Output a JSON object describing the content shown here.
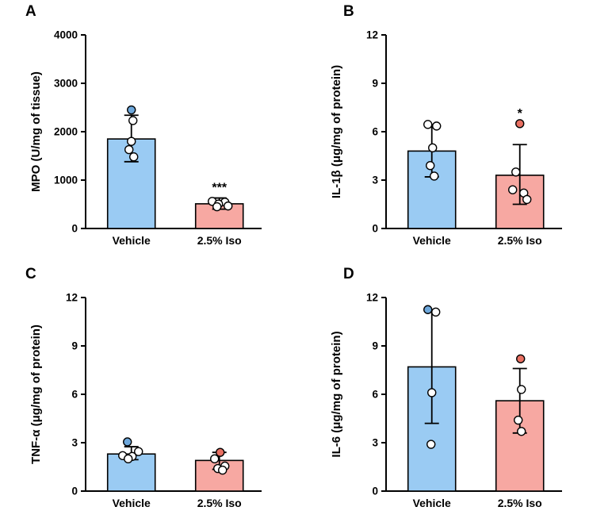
{
  "style": {
    "axis_color": "#000000",
    "bar_fill_vehicle": "#9ACBF3",
    "bar_fill_iso": "#F7A8A2",
    "point_open_fill": "#FFFFFF",
    "point_blue_fill": "#6EA8DC",
    "point_red_fill": "#E97062",
    "point_stroke": "#000000"
  },
  "chart_data": [
    {
      "panel": "A",
      "type": "bar",
      "ylabel": "MPO (U/mg of tissue)",
      "ylim": [
        0,
        4000
      ],
      "yticks": [
        0,
        1000,
        2000,
        3000,
        4000
      ],
      "categories": [
        "Vehicle",
        "2.5% Iso"
      ],
      "grid": false,
      "series": [
        {
          "name": "Vehicle",
          "bar_value": 1850,
          "error_low": 1380,
          "error_high": 2340,
          "color": "#9ACBF3",
          "significance": "",
          "points": [
            {
              "value": 2450,
              "style": "blue",
              "dx": 0
            },
            {
              "value": 2230,
              "style": "open",
              "dx": 2
            },
            {
              "value": 1800,
              "style": "open",
              "dx": 0
            },
            {
              "value": 1630,
              "style": "open",
              "dx": -3
            },
            {
              "value": 1480,
              "style": "open",
              "dx": 3
            }
          ]
        },
        {
          "name": "2.5% Iso",
          "bar_value": 510,
          "error_low": 400,
          "error_high": 630,
          "color": "#F7A8A2",
          "significance": "***",
          "points": [
            {
              "value": 560,
              "style": "open",
              "dx": -9
            },
            {
              "value": 545,
              "style": "open",
              "dx": 7
            },
            {
              "value": 505,
              "style": "open",
              "dx": -1
            },
            {
              "value": 465,
              "style": "open",
              "dx": 11
            },
            {
              "value": 450,
              "style": "open",
              "dx": -3
            }
          ]
        }
      ]
    },
    {
      "panel": "B",
      "type": "bar",
      "ylabel": "IL-1β (μg/mg of protein)",
      "ylim": [
        0,
        12
      ],
      "yticks": [
        0,
        3,
        6,
        9,
        12
      ],
      "categories": [
        "Vehicle",
        "2.5% Iso"
      ],
      "grid": false,
      "series": [
        {
          "name": "Vehicle",
          "bar_value": 4.8,
          "error_low": 3.2,
          "error_high": 6.4,
          "color": "#9ACBF3",
          "significance": "",
          "points": [
            {
              "value": 6.45,
              "style": "open",
              "dx": -5
            },
            {
              "value": 6.35,
              "style": "open",
              "dx": 6
            },
            {
              "value": 5.0,
              "style": "open",
              "dx": 1
            },
            {
              "value": 3.9,
              "style": "open",
              "dx": -2
            },
            {
              "value": 3.25,
              "style": "open",
              "dx": 3
            }
          ]
        },
        {
          "name": "2.5% Iso",
          "bar_value": 3.3,
          "error_low": 1.5,
          "error_high": 5.2,
          "color": "#F7A8A2",
          "significance": "*",
          "points": [
            {
              "value": 6.5,
              "style": "red",
              "dx": 0
            },
            {
              "value": 3.5,
              "style": "open",
              "dx": -5
            },
            {
              "value": 2.4,
              "style": "open",
              "dx": -9
            },
            {
              "value": 2.2,
              "style": "open",
              "dx": 5
            },
            {
              "value": 1.8,
              "style": "open",
              "dx": 9
            }
          ]
        }
      ]
    },
    {
      "panel": "C",
      "type": "bar",
      "ylabel": "TNF-α (μg/mg of protein)",
      "ylim": [
        0,
        12
      ],
      "yticks": [
        0,
        3,
        6,
        9,
        12
      ],
      "categories": [
        "Vehicle",
        "2.5% Iso"
      ],
      "grid": false,
      "series": [
        {
          "name": "Vehicle",
          "bar_value": 2.3,
          "error_low": 1.95,
          "error_high": 2.75,
          "color": "#9ACBF3",
          "significance": "",
          "points": [
            {
              "value": 3.05,
              "style": "blue",
              "dx": -5
            },
            {
              "value": 2.45,
              "style": "open",
              "dx": 9
            },
            {
              "value": 2.2,
              "style": "open",
              "dx": -11
            },
            {
              "value": 2.15,
              "style": "open",
              "dx": 1
            },
            {
              "value": 2.0,
              "style": "open",
              "dx": -4
            }
          ]
        },
        {
          "name": "2.5% Iso",
          "bar_value": 1.9,
          "error_low": 1.35,
          "error_high": 2.4,
          "color": "#F7A8A2",
          "significance": "",
          "points": [
            {
              "value": 2.4,
              "style": "red",
              "dx": 1
            },
            {
              "value": 2.0,
              "style": "open",
              "dx": -6
            },
            {
              "value": 1.55,
              "style": "open",
              "dx": 7
            },
            {
              "value": 1.4,
              "style": "open",
              "dx": -2
            },
            {
              "value": 1.3,
              "style": "open",
              "dx": 4
            }
          ]
        }
      ]
    },
    {
      "panel": "D",
      "type": "bar",
      "ylabel": "IL-6 (μg/mg of protein)",
      "ylim": [
        0,
        12
      ],
      "yticks": [
        0,
        3,
        6,
        9,
        12
      ],
      "categories": [
        "Vehicle",
        "2.5% Iso"
      ],
      "grid": false,
      "series": [
        {
          "name": "Vehicle",
          "bar_value": 7.7,
          "error_low": 4.2,
          "error_high": 11.2,
          "color": "#9ACBF3",
          "significance": "",
          "points": [
            {
              "value": 11.25,
              "style": "blue",
              "dx": -5
            },
            {
              "value": 11.1,
              "style": "open",
              "dx": 5
            },
            {
              "value": 6.1,
              "style": "open",
              "dx": 0
            },
            {
              "value": 2.9,
              "style": "open",
              "dx": -1
            }
          ]
        },
        {
          "name": "2.5% Iso",
          "bar_value": 5.6,
          "error_low": 3.6,
          "error_high": 7.6,
          "color": "#F7A8A2",
          "significance": "",
          "points": [
            {
              "value": 8.2,
              "style": "red",
              "dx": 1
            },
            {
              "value": 6.3,
              "style": "open",
              "dx": 2
            },
            {
              "value": 4.4,
              "style": "open",
              "dx": -2
            },
            {
              "value": 3.7,
              "style": "open",
              "dx": 2
            }
          ]
        }
      ]
    }
  ]
}
